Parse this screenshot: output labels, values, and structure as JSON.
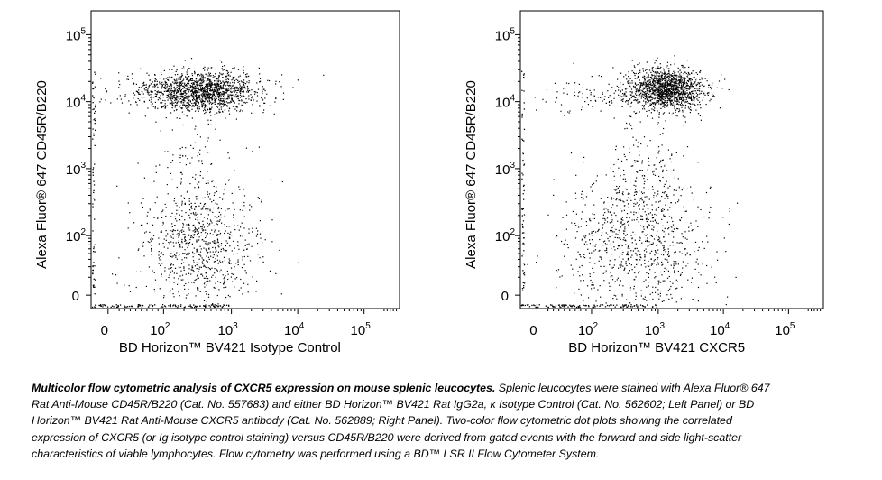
{
  "chart_data": [
    {
      "type": "scatter",
      "xlabel": "BD Horizon™ BV421 Isotype Control",
      "ylabel": "Alexa Fluor® 647 CD45R/B220",
      "x_scale": "biexponential",
      "y_scale": "biexponential",
      "x_ticks": [
        {
          "base": "0",
          "exp": ""
        },
        {
          "base": "10",
          "exp": "2"
        },
        {
          "base": "10",
          "exp": "3"
        },
        {
          "base": "10",
          "exp": "4"
        },
        {
          "base": "10",
          "exp": "5"
        }
      ],
      "y_ticks": [
        {
          "base": "0",
          "exp": ""
        },
        {
          "base": "10",
          "exp": "2"
        },
        {
          "base": "10",
          "exp": "3"
        },
        {
          "base": "10",
          "exp": "4"
        },
        {
          "base": "10",
          "exp": "5"
        }
      ],
      "xlim": [
        -100,
        100000
      ],
      "ylim": [
        -100,
        100000
      ],
      "populations": [
        {
          "name": "",
          "x_center": 300,
          "y_center": 15000,
          "count": 1400
        },
        {
          "name": "",
          "x_center": 250,
          "y_center": 150,
          "count": 1000
        }
      ]
    },
    {
      "type": "scatter",
      "xlabel": "BD Horizon™ BV421 CXCR5",
      "ylabel": "Alexa Fluor® 647 CD45R/B220",
      "x_scale": "biexponential",
      "y_scale": "biexponential",
      "x_ticks": [
        {
          "base": "0",
          "exp": ""
        },
        {
          "base": "10",
          "exp": "2"
        },
        {
          "base": "10",
          "exp": "3"
        },
        {
          "base": "10",
          "exp": "4"
        },
        {
          "base": "10",
          "exp": "5"
        }
      ],
      "y_ticks": [
        {
          "base": "0",
          "exp": ""
        },
        {
          "base": "10",
          "exp": "2"
        },
        {
          "base": "10",
          "exp": "3"
        },
        {
          "base": "10",
          "exp": "4"
        },
        {
          "base": "10",
          "exp": "5"
        }
      ],
      "xlim": [
        -100,
        100000
      ],
      "ylim": [
        -100,
        100000
      ],
      "populations": [
        {
          "name": "",
          "x_center": 1000,
          "y_center": 15000,
          "count": 1500
        },
        {
          "name": "",
          "x_center": 400,
          "y_center": 150,
          "count": 1000
        }
      ]
    }
  ],
  "caption": {
    "title": "Multicolor flow cytometric analysis of CXCR5 expression on mouse splenic leucocytes.",
    "body": " Splenic leucocytes were stained with Alexa Fluor® 647 Rat Anti-Mouse CD45R/B220 (Cat. No. 557683) and either BD Horizon™ BV421 Rat IgG2a, κ Isotype Control (Cat. No. 562602; Left Panel) or BD Horizon™ BV421 Rat Anti-Mouse CXCR5 antibody (Cat. No. 562889; Right Panel). Two-color flow cytometric dot plots showing the correlated expression of CXCR5 (or Ig isotype control staining) versus CD45R/B220 were derived from gated events with the forward and side light-scatter characteristics of viable lymphocytes. Flow cytometry was performed using a BD™ LSR II Flow Cytometer System."
  }
}
